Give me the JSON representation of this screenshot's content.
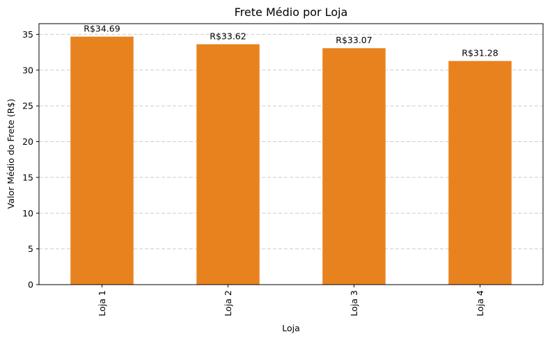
{
  "chart_data": {
    "type": "bar",
    "title": "Frete Médio por Loja",
    "xlabel": "Loja",
    "ylabel": "Valor Médio do Frete (R$)",
    "categories": [
      "Loja 1",
      "Loja 2",
      "Loja 3",
      "Loja 4"
    ],
    "values": [
      34.69,
      33.62,
      33.07,
      31.28
    ],
    "data_labels": [
      "R$34.69",
      "R$33.62",
      "R$33.07",
      "R$31.28"
    ],
    "ylim": [
      0,
      36.5
    ],
    "yticks": [
      0,
      5,
      10,
      15,
      20,
      25,
      30,
      35
    ],
    "grid": "y-dashed",
    "legend": "none",
    "bar_color": "#e8821f"
  }
}
